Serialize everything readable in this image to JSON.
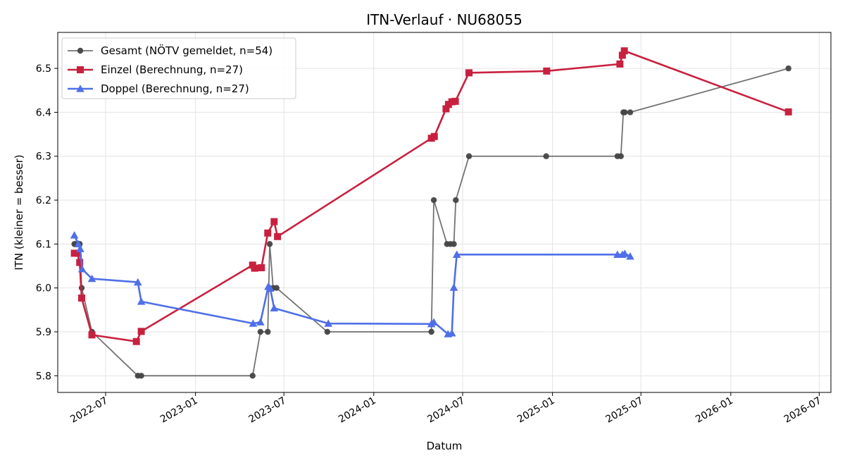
{
  "chart_data": {
    "type": "line",
    "title": "ITN-Verlauf · NU68055",
    "xlabel": "Datum",
    "ylabel": "ITN  (kleiner = besser)",
    "x_scale": "date",
    "xlim": [
      "2022-03-25",
      "2026-07-25"
    ],
    "ylim": [
      5.762,
      6.582
    ],
    "x_ticks": [
      "2022-07-01",
      "2023-01-01",
      "2023-07-01",
      "2024-01-01",
      "2024-07-01",
      "2025-01-01",
      "2025-07-01",
      "2026-01-01",
      "2026-07-01"
    ],
    "x_tick_labels": [
      "2022-07",
      "2023-01",
      "2023-07",
      "2024-01",
      "2024-07",
      "2025-01",
      "2025-07",
      "2026-01",
      "2026-07"
    ],
    "y_ticks": [
      5.8,
      5.9,
      6.0,
      6.1,
      6.2,
      6.3,
      6.4,
      6.5
    ],
    "y_tick_labels": [
      "5.8",
      "5.9",
      "6.0",
      "6.1",
      "6.2",
      "6.3",
      "6.4",
      "6.5"
    ],
    "grid": true,
    "legend_position": "top-left",
    "series": [
      {
        "name": "Gesamt (NÖTV gemeldet, n=54)",
        "color": "#444444",
        "marker": "circle",
        "step": true,
        "points": [
          [
            "2022-04-28",
            6.1
          ],
          [
            "2022-05-01",
            6.1
          ],
          [
            "2022-05-07",
            6.1
          ],
          [
            "2022-05-09",
            6.1
          ],
          [
            "2022-05-13",
            6.0
          ],
          [
            "2022-06-03",
            5.9
          ],
          [
            "2022-09-05",
            5.8
          ],
          [
            "2022-09-12",
            5.8
          ],
          [
            "2023-04-28",
            5.8
          ],
          [
            "2023-05-14",
            5.9
          ],
          [
            "2023-05-29",
            5.9
          ],
          [
            "2023-06-02",
            6.1
          ],
          [
            "2023-06-09",
            6.0
          ],
          [
            "2023-06-16",
            6.0
          ],
          [
            "2023-09-28",
            5.9
          ],
          [
            "2024-04-28",
            5.9
          ],
          [
            "2024-05-03",
            6.2
          ],
          [
            "2024-05-30",
            6.1
          ],
          [
            "2024-06-06",
            6.1
          ],
          [
            "2024-06-13",
            6.1
          ],
          [
            "2024-06-17",
            6.2
          ],
          [
            "2024-07-14",
            6.3
          ],
          [
            "2024-12-19",
            6.3
          ],
          [
            "2025-05-14",
            6.3
          ],
          [
            "2025-05-21",
            6.3
          ],
          [
            "2025-05-26",
            6.4
          ],
          [
            "2025-05-29",
            6.4
          ],
          [
            "2025-06-09",
            6.4
          ],
          [
            "2026-04-29",
            6.5
          ]
        ]
      },
      {
        "name": "Einzel (Berechnung, n=27)",
        "color": "#c8213f",
        "marker": "square",
        "step": false,
        "points": [
          [
            "2022-04-28",
            6.079
          ],
          [
            "2022-05-04",
            6.079
          ],
          [
            "2022-05-09",
            6.058
          ],
          [
            "2022-05-13",
            5.977
          ],
          [
            "2022-06-03",
            5.893
          ],
          [
            "2022-09-02",
            5.878
          ],
          [
            "2022-09-12",
            5.901
          ],
          [
            "2023-04-28",
            6.052
          ],
          [
            "2023-05-02",
            6.045
          ],
          [
            "2023-05-16",
            6.046
          ],
          [
            "2023-05-29",
            6.125
          ],
          [
            "2023-06-11",
            6.151
          ],
          [
            "2023-06-18",
            6.117
          ],
          [
            "2024-04-28",
            6.341
          ],
          [
            "2024-05-04",
            6.345
          ],
          [
            "2024-05-28",
            6.408
          ],
          [
            "2024-06-02",
            6.418
          ],
          [
            "2024-06-09",
            6.424
          ],
          [
            "2024-06-16",
            6.425
          ],
          [
            "2024-07-14",
            6.49
          ],
          [
            "2024-12-20",
            6.494
          ],
          [
            "2025-05-19",
            6.51
          ],
          [
            "2025-05-24",
            6.53
          ],
          [
            "2025-05-28",
            6.54
          ],
          [
            "2026-04-29",
            6.401
          ]
        ]
      },
      {
        "name": "Doppel (Berechnung, n=27)",
        "color": "#4f6fe8",
        "marker": "triangle",
        "step": false,
        "points": [
          [
            "2022-04-28",
            6.12
          ],
          [
            "2022-05-06",
            6.1
          ],
          [
            "2022-05-10",
            6.089
          ],
          [
            "2022-05-14",
            6.043
          ],
          [
            "2022-06-03",
            6.021
          ],
          [
            "2022-09-05",
            6.013
          ],
          [
            "2022-09-12",
            5.969
          ],
          [
            "2023-04-29",
            5.919
          ],
          [
            "2023-05-14",
            5.922
          ],
          [
            "2023-05-30",
            6.003
          ],
          [
            "2023-06-03",
            5.999
          ],
          [
            "2023-06-11",
            5.954
          ],
          [
            "2023-09-30",
            5.919
          ],
          [
            "2024-04-28",
            5.918
          ],
          [
            "2024-05-03",
            5.922
          ],
          [
            "2024-06-01",
            5.895
          ],
          [
            "2024-06-09",
            5.897
          ],
          [
            "2024-06-13",
            6.001
          ],
          [
            "2024-06-19",
            6.076
          ],
          [
            "2025-05-14",
            6.076
          ],
          [
            "2025-05-24",
            6.076
          ],
          [
            "2025-05-29",
            6.078
          ],
          [
            "2025-06-09",
            6.072
          ]
        ]
      }
    ]
  }
}
